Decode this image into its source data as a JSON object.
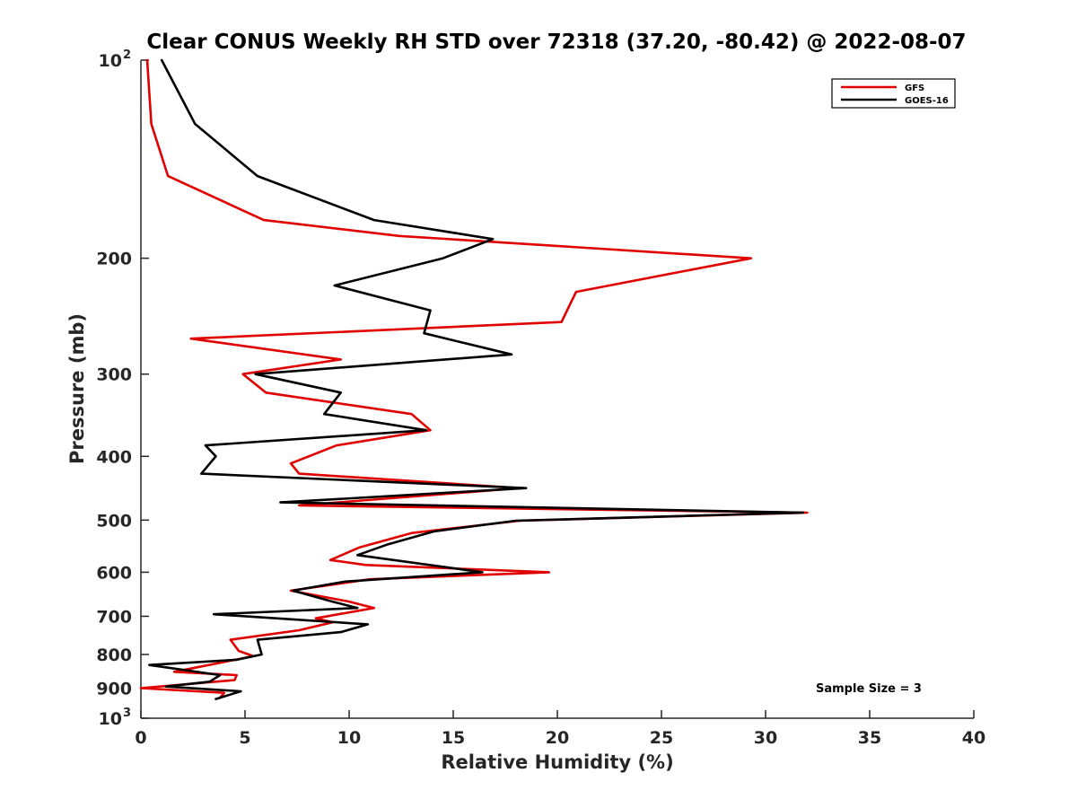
{
  "chart_data": {
    "type": "line",
    "title": "Clear CONUS Weekly RH STD over 72318 (37.20, -80.42) @ 2022-08-07",
    "xlabel": "Relative Humidity (%)",
    "ylabel": "Pressure (mb)",
    "xlim": [
      0,
      40
    ],
    "ylim": [
      1000,
      100
    ],
    "yscale": "log",
    "y_inverted": true,
    "xticks": [
      "0",
      "5",
      "10",
      "15",
      "20",
      "25",
      "30",
      "35",
      "40"
    ],
    "yticks": [
      {
        "value": 100,
        "base": "10",
        "exp": "2"
      },
      {
        "value": 200,
        "label": "200"
      },
      {
        "value": 300,
        "label": "300"
      },
      {
        "value": 400,
        "label": "400"
      },
      {
        "value": 500,
        "label": "500"
      },
      {
        "value": 600,
        "label": "600"
      },
      {
        "value": 700,
        "label": "700"
      },
      {
        "value": 800,
        "label": "800"
      },
      {
        "value": 900,
        "label": "900"
      },
      {
        "value": 1000,
        "base": "10",
        "exp": "3"
      }
    ],
    "legend_position": "top-right",
    "annotation": "Sample Size = 3",
    "series": [
      {
        "name": "GFS",
        "color": "#e00000",
        "points": [
          [
            0.3,
            100
          ],
          [
            0.5,
            125
          ],
          [
            1.3,
            150
          ],
          [
            5.9,
            175
          ],
          [
            12.4,
            185
          ],
          [
            29.3,
            200
          ],
          [
            20.9,
            225
          ],
          [
            20.2,
            250
          ],
          [
            2.4,
            265
          ],
          [
            9.6,
            285
          ],
          [
            4.9,
            300
          ],
          [
            6.0,
            320
          ],
          [
            13.0,
            345
          ],
          [
            13.9,
            365
          ],
          [
            9.4,
            385
          ],
          [
            7.2,
            410
          ],
          [
            7.6,
            425
          ],
          [
            18.2,
            447
          ],
          [
            7.6,
            475
          ],
          [
            32.0,
            487
          ],
          [
            18.2,
            501
          ],
          [
            13.0,
            523
          ],
          [
            10.5,
            550
          ],
          [
            9.1,
            575
          ],
          [
            10.8,
            585
          ],
          [
            19.6,
            600
          ],
          [
            11.0,
            615
          ],
          [
            7.2,
            640
          ],
          [
            10.0,
            665
          ],
          [
            11.2,
            680
          ],
          [
            8.4,
            705
          ],
          [
            9.2,
            715
          ],
          [
            7.6,
            735
          ],
          [
            4.3,
            760
          ],
          [
            4.7,
            790
          ],
          [
            5.4,
            805
          ],
          [
            1.6,
            850
          ],
          [
            4.6,
            860
          ],
          [
            4.5,
            875
          ],
          [
            0.0,
            900
          ],
          [
            4.0,
            915
          ],
          [
            3.8,
            930
          ]
        ]
      },
      {
        "name": "GOES-16",
        "color": "#000000",
        "points": [
          [
            1.0,
            100
          ],
          [
            2.6,
            125
          ],
          [
            5.6,
            150
          ],
          [
            11.2,
            175
          ],
          [
            16.9,
            187
          ],
          [
            14.5,
            200
          ],
          [
            9.3,
            220
          ],
          [
            13.9,
            240
          ],
          [
            13.6,
            260
          ],
          [
            17.8,
            280
          ],
          [
            5.5,
            300
          ],
          [
            9.6,
            320
          ],
          [
            8.8,
            345
          ],
          [
            13.7,
            365
          ],
          [
            3.1,
            385
          ],
          [
            3.6,
            400
          ],
          [
            2.9,
            425
          ],
          [
            18.5,
            447
          ],
          [
            6.7,
            470
          ],
          [
            31.8,
            487
          ],
          [
            18.0,
            501
          ],
          [
            14.1,
            520
          ],
          [
            11.8,
            545
          ],
          [
            10.4,
            565
          ],
          [
            16.4,
            600
          ],
          [
            9.8,
            620
          ],
          [
            7.3,
            640
          ],
          [
            9.2,
            665
          ],
          [
            10.4,
            680
          ],
          [
            3.5,
            695
          ],
          [
            10.9,
            720
          ],
          [
            9.6,
            740
          ],
          [
            5.6,
            760
          ],
          [
            5.8,
            800
          ],
          [
            4.6,
            815
          ],
          [
            0.4,
            830
          ],
          [
            3.8,
            860
          ],
          [
            3.3,
            880
          ],
          [
            1.2,
            895
          ],
          [
            4.8,
            910
          ],
          [
            3.6,
            935
          ]
        ]
      }
    ]
  }
}
